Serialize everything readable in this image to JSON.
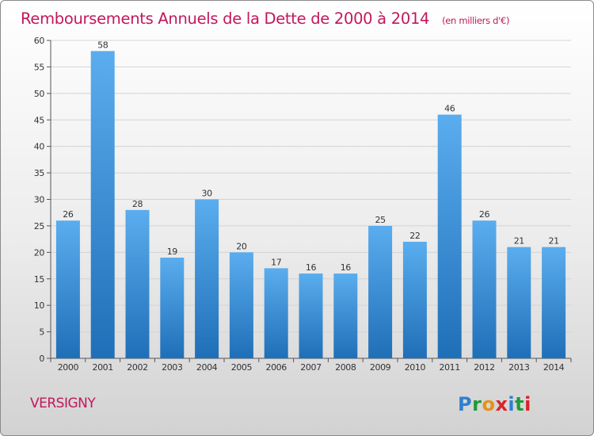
{
  "chart_data": {
    "type": "bar",
    "title": "Remboursements Annuels de la Dette de 2000 à 2014",
    "subtitle": "(en milliers d'€)",
    "categories": [
      "2000",
      "2001",
      "2002",
      "2003",
      "2004",
      "2005",
      "2006",
      "2007",
      "2008",
      "2009",
      "2010",
      "2011",
      "2012",
      "2013",
      "2014"
    ],
    "values": [
      26,
      58,
      28,
      19,
      30,
      20,
      17,
      16,
      16,
      25,
      22,
      46,
      26,
      21,
      21
    ],
    "ylim": [
      0,
      60
    ],
    "yticks": [
      0,
      5,
      10,
      15,
      20,
      25,
      30,
      35,
      40,
      45,
      50,
      55,
      60
    ],
    "grid": true,
    "bar_color": "#3a8fd6"
  },
  "location": "VERSIGNY",
  "logo": {
    "letters": [
      "P",
      "r",
      "o",
      "x",
      "i",
      "t",
      "i"
    ],
    "colors": [
      "#2f7fd1",
      "#1f9a3a",
      "#e8901a",
      "#d8232a",
      "#2f7fd1",
      "#1f9a3a",
      "#d8232a"
    ]
  }
}
